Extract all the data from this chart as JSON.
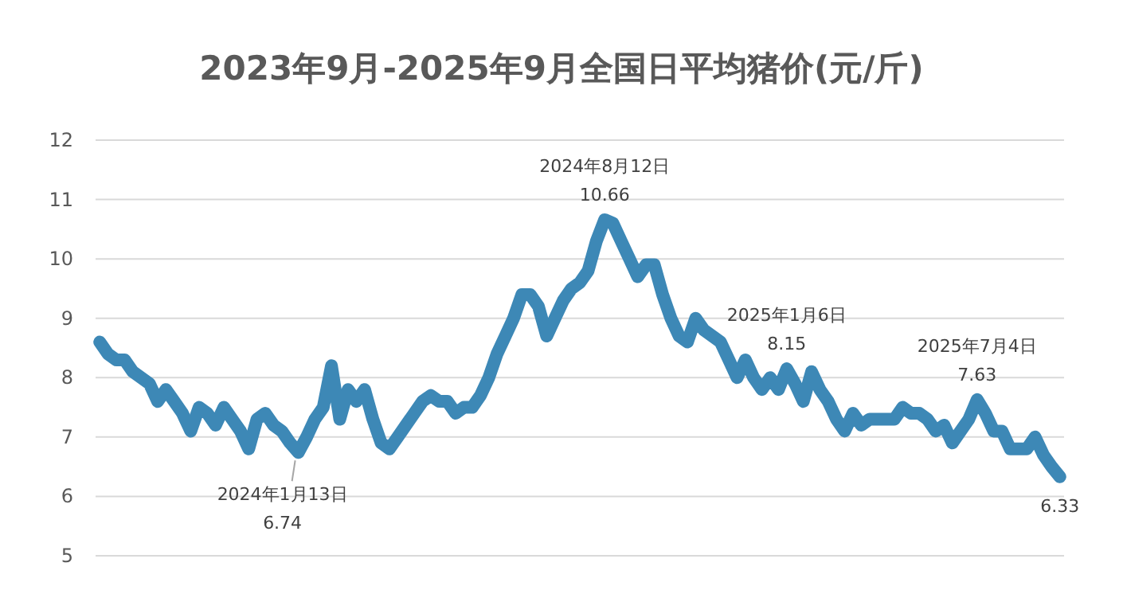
{
  "chart_data": {
    "type": "line",
    "title": "2023年9月-2025年9月全国日平均猪价(元/斤)",
    "categories": [
      null,
      null,
      null,
      null,
      null,
      null,
      null,
      null,
      null,
      null,
      null,
      null,
      null,
      null,
      null,
      null,
      null,
      null,
      null,
      null,
      null,
      null,
      null,
      null,
      null,
      null,
      null,
      null,
      null,
      null,
      null,
      null,
      null,
      null,
      null,
      null,
      null,
      null,
      null,
      null,
      null,
      null,
      null,
      null,
      null,
      null,
      null,
      null,
      null,
      null,
      null,
      null,
      null,
      null,
      null,
      null,
      null,
      null,
      null,
      null,
      null,
      null,
      null,
      null,
      null,
      null,
      null,
      null,
      null,
      null,
      null,
      null,
      null,
      null,
      null,
      null,
      null,
      null,
      null,
      null,
      null,
      null,
      null,
      null,
      null,
      null,
      null,
      null,
      null,
      null,
      null,
      null,
      null,
      null,
      null,
      null,
      null,
      null,
      null,
      null,
      null,
      null,
      null,
      null,
      null,
      null,
      null,
      null,
      null,
      null,
      null,
      null,
      null,
      null,
      null,
      null,
      null
    ],
    "values": [
      8.6,
      8.4,
      8.3,
      8.3,
      8.1,
      8.0,
      7.9,
      7.6,
      7.8,
      7.6,
      7.4,
      7.1,
      7.5,
      7.4,
      7.2,
      7.5,
      7.3,
      7.1,
      6.8,
      7.3,
      7.4,
      7.2,
      7.1,
      6.9,
      6.74,
      7.0,
      7.3,
      7.5,
      8.2,
      7.3,
      7.8,
      7.6,
      7.8,
      7.3,
      6.9,
      6.8,
      7.0,
      7.2,
      7.4,
      7.6,
      7.7,
      7.6,
      7.6,
      7.4,
      7.5,
      7.5,
      7.7,
      8.0,
      8.4,
      8.7,
      9.0,
      9.4,
      9.4,
      9.2,
      8.7,
      9.0,
      9.3,
      9.5,
      9.6,
      9.8,
      10.3,
      10.66,
      10.6,
      10.3,
      10.0,
      9.7,
      9.9,
      9.9,
      9.4,
      9.0,
      8.7,
      8.6,
      9.0,
      8.8,
      8.7,
      8.6,
      8.3,
      8.0,
      8.3,
      8.0,
      7.8,
      8.0,
      7.8,
      8.15,
      7.9,
      7.6,
      8.1,
      7.8,
      7.6,
      7.3,
      7.1,
      7.4,
      7.2,
      7.3,
      7.3,
      7.3,
      7.3,
      7.5,
      7.4,
      7.4,
      7.3,
      7.1,
      7.2,
      6.9,
      7.1,
      7.3,
      7.63,
      7.4,
      7.1,
      7.1,
      6.8,
      6.8,
      6.8,
      7.0,
      6.7,
      6.5,
      6.33
    ],
    "color": "#3d88b6",
    "line_style": "solid",
    "ylim": [
      5,
      12
    ],
    "yticks": [
      5,
      6,
      7,
      8,
      9,
      10,
      11,
      12
    ],
    "grid": "y",
    "tick_labels": "y",
    "annotations": [
      {
        "text": "2024年1月13日\n6.74",
        "y": 6.74
      },
      {
        "text": "2024年8月12日\n10.66",
        "y": 10.66
      },
      {
        "text": "2025年1月6日\n8.15",
        "y": 8.15
      },
      {
        "text": "2025年7月4日\n7.63",
        "y": 7.63
      },
      {
        "text": "6.33",
        "y": 6.33
      }
    ]
  }
}
